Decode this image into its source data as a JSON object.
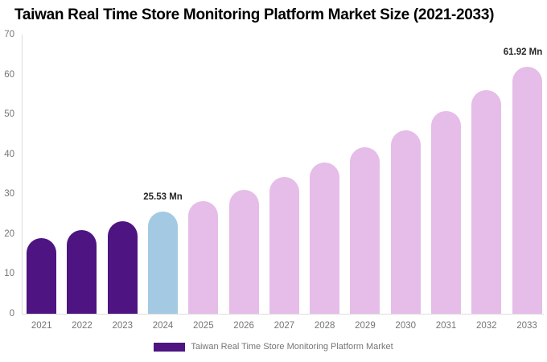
{
  "title": "Taiwan Real Time Store Monitoring Platform Market Size (2021-2033)",
  "chart_data": {
    "type": "bar",
    "categories": [
      "2021",
      "2022",
      "2023",
      "2024",
      "2025",
      "2026",
      "2027",
      "2028",
      "2029",
      "2030",
      "2031",
      "2032",
      "2033"
    ],
    "values": [
      19.01,
      20.97,
      23.14,
      25.53,
      28.17,
      31.08,
      34.3,
      37.84,
      41.76,
      46.07,
      50.84,
      56.1,
      61.92
    ],
    "unit": "Mn",
    "title": "Taiwan Real Time Store Monitoring Platform Market Size (2021-2033)",
    "xlabel": "",
    "ylabel": "",
    "ylim": [
      0,
      70
    ],
    "yticks": [
      0,
      10,
      20,
      30,
      40,
      50,
      60,
      70
    ],
    "grid": false,
    "legend_position": "bottom",
    "annotations": [
      {
        "category": "2024",
        "text": "25.53 Mn"
      },
      {
        "category": "2033",
        "text": "61.92 Mn"
      }
    ],
    "bar_color_groups": {
      "historical_2021_2023": "#4E1482",
      "base_year_2024": "#A3CAE2",
      "forecast_2025_2033": "#E5BDE8"
    },
    "bar_colors": [
      "#4E1482",
      "#4E1482",
      "#4E1482",
      "#A3CAE2",
      "#E5BDE8",
      "#E5BDE8",
      "#E5BDE8",
      "#E5BDE8",
      "#E5BDE8",
      "#E5BDE8",
      "#E5BDE8",
      "#E5BDE8",
      "#E5BDE8"
    ]
  },
  "legend": {
    "label": "Taiwan Real Time Store Monitoring Platform Market",
    "swatch_color": "#4E1482"
  },
  "colors": {
    "background": "#ffffff",
    "axis_line": "#dddddd",
    "tick_label": "#757575",
    "annotation_text": "#262626",
    "title_text": "#000000"
  }
}
